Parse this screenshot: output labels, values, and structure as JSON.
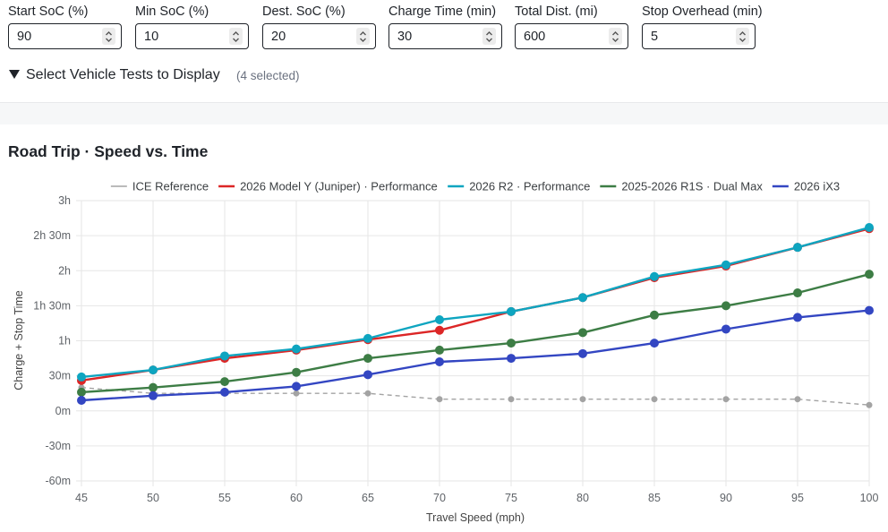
{
  "inputs": [
    {
      "label": "Start SoC (%)",
      "value": "90"
    },
    {
      "label": "Min SoC (%)",
      "value": "10"
    },
    {
      "label": "Dest. SoC (%)",
      "value": "20"
    },
    {
      "label": "Charge Time (min)",
      "value": "30"
    },
    {
      "label": "Total Dist. (mi)",
      "value": "600"
    },
    {
      "label": "Stop Overhead (min)",
      "value": "5"
    }
  ],
  "vehicle_toggle": {
    "arrow": "▼",
    "title": "Select Vehicle Tests to Display",
    "count": "(4 selected)"
  },
  "chart_data": {
    "type": "line",
    "title": "Road Trip · Speed vs. Time",
    "xlabel": "Travel Speed (mph)",
    "ylabel": "Charge + Stop Time",
    "x": [
      45,
      50,
      55,
      60,
      65,
      70,
      75,
      80,
      85,
      90,
      95,
      100
    ],
    "xlim": [
      45,
      100
    ],
    "ylim": [
      -60,
      180
    ],
    "yunit": "minutes",
    "y_ticks": [
      {
        "value": 180,
        "label": "3h"
      },
      {
        "value": 150,
        "label": "2h 30m"
      },
      {
        "value": 120,
        "label": "2h"
      },
      {
        "value": 90,
        "label": "1h 30m"
      },
      {
        "value": 60,
        "label": "1h"
      },
      {
        "value": 30,
        "label": "30m"
      },
      {
        "value": 0,
        "label": "0m"
      },
      {
        "value": -30,
        "label": "-30m"
      },
      {
        "value": -60,
        "label": "-60m"
      }
    ],
    "grid": true,
    "legend_position": "top",
    "series": [
      {
        "name": "ICE Reference",
        "color": "#a3a3a3",
        "dashed": true,
        "marker_size": 3,
        "values": [
          20,
          15,
          15,
          15,
          15,
          10,
          10,
          10,
          10,
          10,
          10,
          5
        ]
      },
      {
        "name": "2026 Model Y (Juniper) · Performance",
        "color": "#dc2626",
        "dashed": false,
        "marker_size": 4.5,
        "values": [
          26,
          35,
          45,
          52,
          61,
          69,
          85,
          97,
          114,
          124,
          140,
          156
        ]
      },
      {
        "name": "2026 R2 · Performance",
        "color": "#0ea5c0",
        "dashed": false,
        "marker_size": 4.5,
        "values": [
          29,
          35,
          47,
          53,
          62,
          78,
          85,
          97,
          115,
          125,
          140,
          157
        ]
      },
      {
        "name": "2025-2026 R1S · Dual Max",
        "color": "#3d7d45",
        "dashed": false,
        "marker_size": 4.5,
        "values": [
          16,
          20,
          25,
          33,
          45,
          52,
          58,
          67,
          82,
          90,
          101,
          117
        ]
      },
      {
        "name": "2026 iX3",
        "color": "#3346c2",
        "dashed": false,
        "marker_size": 4.5,
        "values": [
          9,
          13,
          16,
          21,
          31,
          42,
          45,
          49,
          58,
          70,
          80,
          86
        ]
      }
    ]
  }
}
